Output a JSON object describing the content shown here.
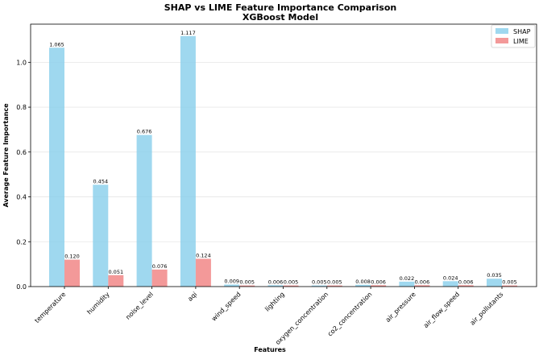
{
  "chart_data": {
    "type": "bar",
    "title": "SHAP vs LIME Feature Importance Comparison",
    "subtitle": "XGBoost Model",
    "xlabel": "Features",
    "ylabel": "Average Feature Importance",
    "ylim": [
      0,
      1.17
    ],
    "yticks": [
      "0.0",
      "0.2",
      "0.4",
      "0.6",
      "0.8",
      "1.0"
    ],
    "grid": true,
    "legend_position": "top-right",
    "categories": [
      "temperature",
      "humidity",
      "noise_level",
      "aqi",
      "wind_speed",
      "lighting",
      "oxygen_concentration",
      "co2_concentration",
      "air_pressure",
      "air_flow_speed",
      "air_pollutants"
    ],
    "series": [
      {
        "name": "SHAP",
        "color": "#87CEEB",
        "values": [
          1.065,
          0.454,
          0.676,
          1.117,
          0.009,
          0.006,
          0.005,
          0.008,
          0.022,
          0.024,
          0.035
        ],
        "labels": [
          "1.065",
          "0.454",
          "0.676",
          "1.117",
          "0.009",
          "0.006",
          "0.005",
          "0.008",
          "0.022",
          "0.024",
          "0.035"
        ]
      },
      {
        "name": "LIME",
        "color": "#F08080",
        "values": [
          0.12,
          0.051,
          0.076,
          0.124,
          0.005,
          0.005,
          0.005,
          0.006,
          0.006,
          0.006,
          0.005
        ],
        "labels": [
          "0.120",
          "0.051",
          "0.076",
          "0.124",
          "0.005",
          "0.005",
          "0.005",
          "0.006",
          "0.006",
          "0.006",
          "0.005"
        ]
      }
    ]
  }
}
